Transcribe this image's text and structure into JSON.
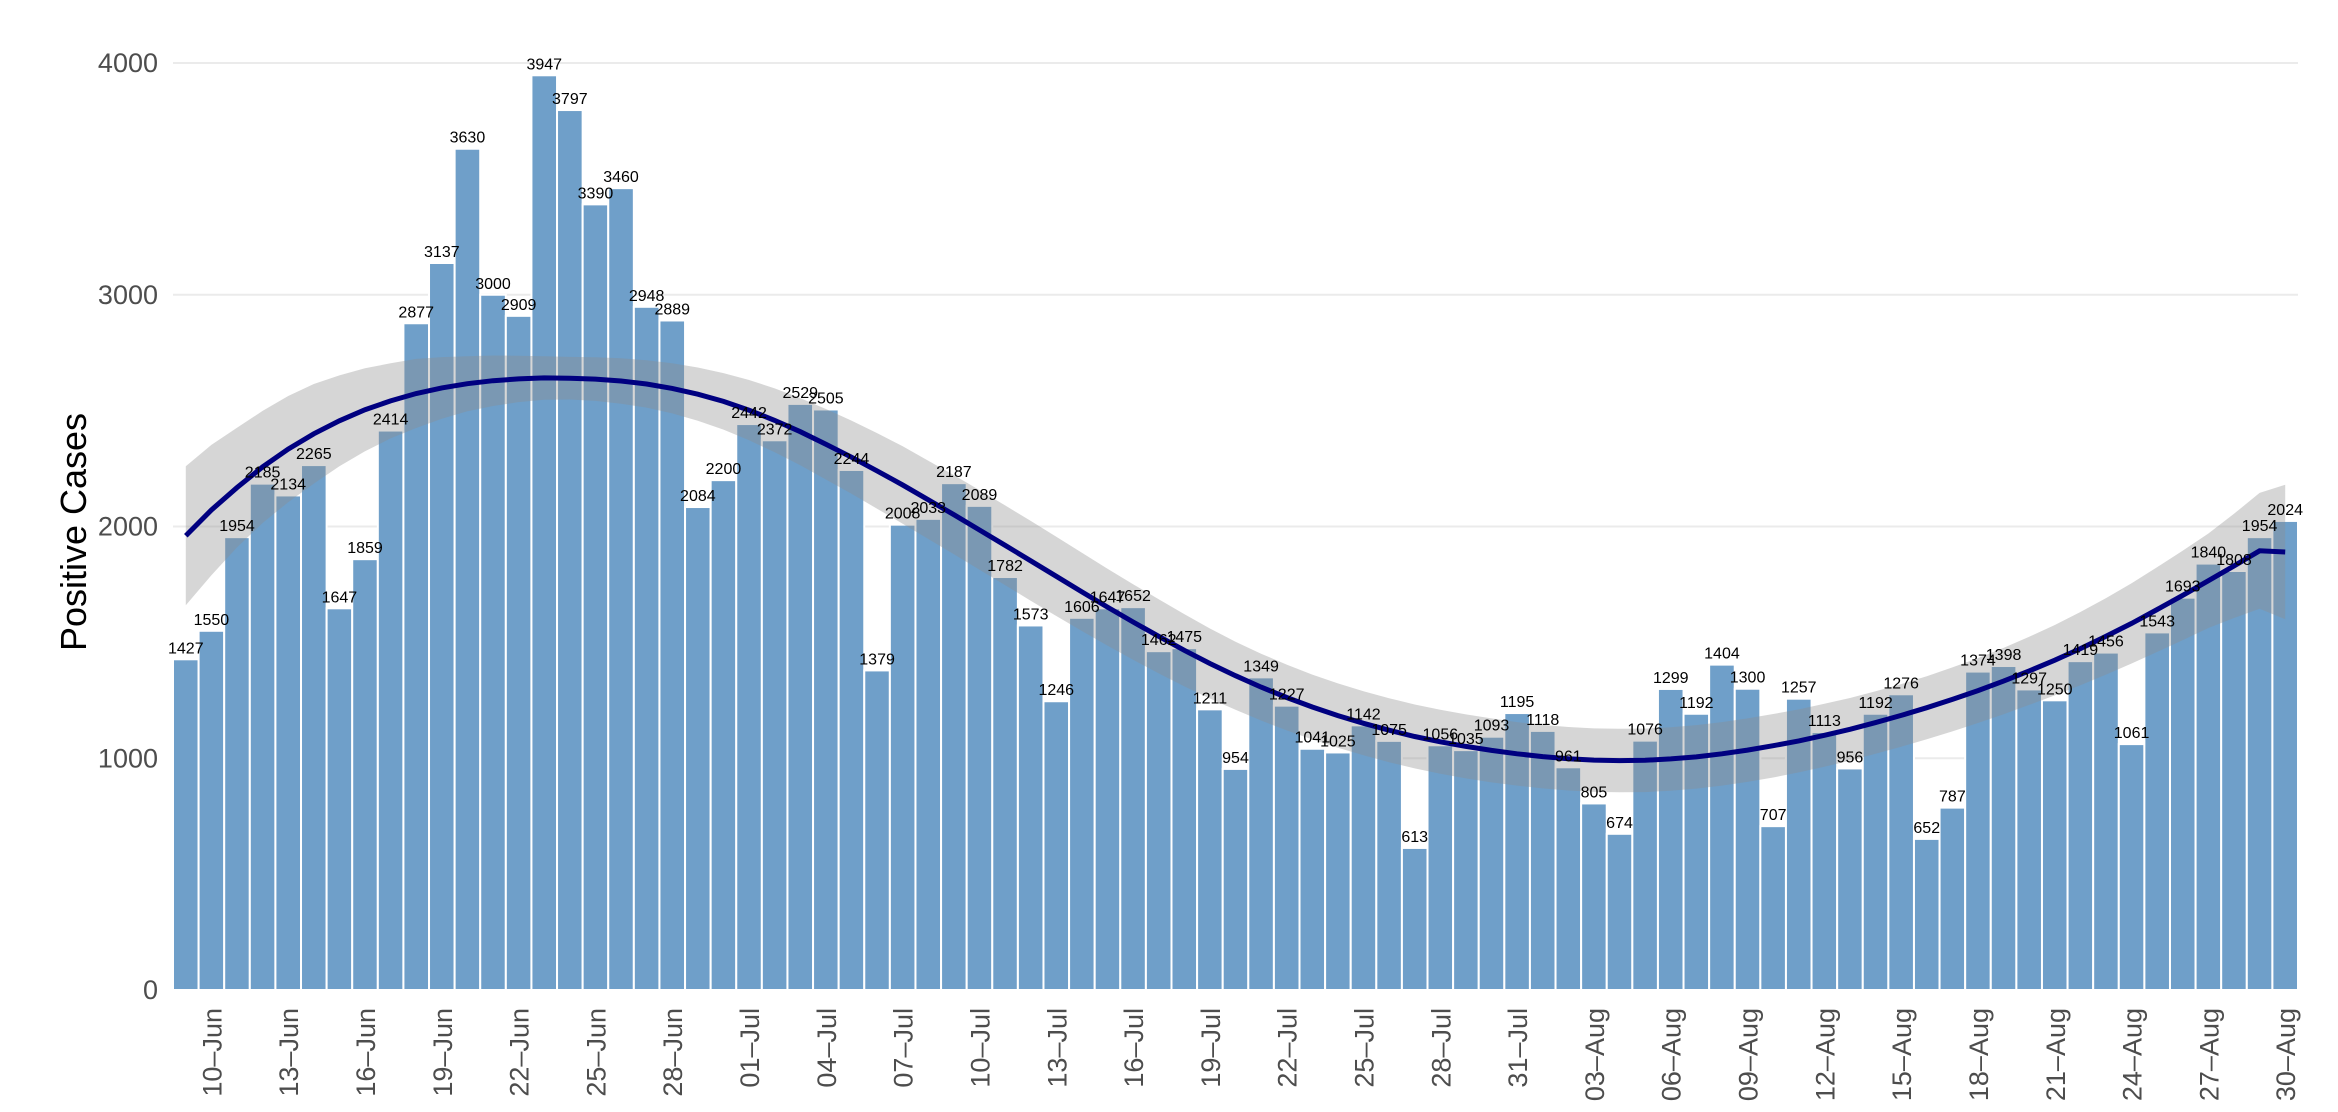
{
  "chart_data": {
    "type": "bar",
    "ylabel": "Positive Cases",
    "xlabel": "",
    "ylim": [
      0,
      4000
    ],
    "yticks": [
      0,
      1000,
      2000,
      3000,
      4000
    ],
    "grid": true,
    "legend": "none",
    "categories": [
      "09-Jun",
      "10-Jun",
      "11-Jun",
      "12-Jun",
      "13-Jun",
      "14-Jun",
      "15-Jun",
      "16-Jun",
      "17-Jun",
      "18-Jun",
      "19-Jun",
      "20-Jun",
      "21-Jun",
      "22-Jun",
      "23-Jun",
      "24-Jun",
      "25-Jun",
      "26-Jun",
      "27-Jun",
      "28-Jun",
      "29-Jun",
      "30-Jun",
      "01-Jul",
      "02-Jul",
      "03-Jul",
      "04-Jul",
      "05-Jul",
      "06-Jul",
      "07-Jul",
      "08-Jul",
      "09-Jul",
      "10-Jul",
      "11-Jul",
      "12-Jul",
      "13-Jul",
      "14-Jul",
      "15-Jul",
      "16-Jul",
      "17-Jul",
      "18-Jul",
      "19-Jul",
      "20-Jul",
      "21-Jul",
      "22-Jul",
      "23-Jul",
      "24-Jul",
      "25-Jul",
      "26-Jul",
      "27-Jul",
      "28-Jul",
      "29-Jul",
      "30-Jul",
      "31-Jul",
      "01-Aug",
      "02-Aug",
      "03-Aug",
      "04-Aug",
      "05-Aug",
      "06-Aug",
      "07-Aug",
      "08-Aug",
      "09-Aug",
      "10-Aug",
      "11-Aug",
      "12-Aug",
      "13-Aug",
      "14-Aug",
      "15-Aug",
      "16-Aug",
      "17-Aug",
      "18-Aug",
      "19-Aug",
      "20-Aug",
      "21-Aug",
      "22-Aug",
      "23-Aug",
      "24-Aug",
      "25-Aug",
      "26-Aug",
      "27-Aug",
      "28-Aug",
      "29-Aug",
      "30-Aug"
    ],
    "xtick_labels": [
      "10–Jun",
      "13–Jun",
      "16–Jun",
      "19–Jun",
      "22–Jun",
      "25–Jun",
      "28–Jun",
      "01–Jul",
      "04–Jul",
      "07–Jul",
      "10–Jul",
      "13–Jul",
      "16–Jul",
      "19–Jul",
      "22–Jul",
      "25–Jul",
      "28–Jul",
      "31–Jul",
      "03–Aug",
      "06–Aug",
      "09–Aug",
      "12–Aug",
      "15–Aug",
      "18–Aug",
      "21–Aug",
      "24–Aug",
      "27–Aug",
      "30–Aug"
    ],
    "series": [
      {
        "values": [
          1427,
          1550,
          1954,
          2185,
          2134,
          2265,
          1647,
          1859,
          2414,
          2877,
          3137,
          3630,
          3000,
          2909,
          3947,
          3797,
          3390,
          3460,
          2948,
          2889,
          2084,
          2200,
          2442,
          2372,
          2529,
          2505,
          2244,
          1379,
          2008,
          2033,
          2187,
          2089,
          1782,
          1573,
          1246,
          1606,
          1647,
          1652,
          1462,
          1475,
          1211,
          954,
          1349,
          1227,
          1041,
          1025,
          1142,
          1075,
          613,
          1056,
          1035,
          1093,
          1195,
          1118,
          961,
          805,
          674,
          1076,
          1299,
          1192,
          1404,
          1300,
          707,
          1257,
          1113,
          956,
          1192,
          1276,
          652,
          787,
          1374,
          1398,
          1297,
          1250,
          1419,
          1456,
          1061,
          1543,
          1693,
          1840,
          1808,
          1954,
          2024
        ]
      }
    ],
    "trend": {
      "values": [
        1960,
        2071,
        2168,
        2257,
        2334,
        2400,
        2456,
        2504,
        2542,
        2574,
        2598,
        2616,
        2629,
        2637,
        2641,
        2640,
        2636,
        2628,
        2615,
        2596,
        2571,
        2540,
        2502,
        2458,
        2409,
        2355,
        2299,
        2240,
        2179,
        2115,
        2051,
        1985,
        1919,
        1852,
        1785,
        1718,
        1652,
        1588,
        1526,
        1466,
        1409,
        1356,
        1307,
        1262,
        1221,
        1184,
        1151,
        1121,
        1094,
        1071,
        1051,
        1034,
        1019,
        1007,
        998,
        992,
        990,
        991,
        997,
        1006,
        1019,
        1035,
        1054,
        1075,
        1099,
        1125,
        1154,
        1185,
        1218,
        1254,
        1292,
        1333,
        1377,
        1423,
        1473,
        1526,
        1582,
        1642,
        1703,
        1766,
        1830,
        1895,
        1890
      ],
      "ci_low": [
        1660,
        1790,
        1910,
        2015,
        2105,
        2185,
        2260,
        2325,
        2380,
        2425,
        2465,
        2497,
        2520,
        2537,
        2547,
        2548,
        2542,
        2530,
        2513,
        2488,
        2456,
        2418,
        2372,
        2320,
        2264,
        2203,
        2141,
        2077,
        2012,
        1946,
        1880,
        1813,
        1747,
        1680,
        1614,
        1549,
        1486,
        1425,
        1366,
        1310,
        1258,
        1209,
        1163,
        1120,
        1081,
        1045,
        1013,
        983,
        956,
        933,
        913,
        896,
        882,
        870,
        861,
        855,
        853,
        854,
        860,
        869,
        882,
        898,
        917,
        939,
        963,
        990,
        1019,
        1050,
        1082,
        1116,
        1152,
        1190,
        1230,
        1271,
        1315,
        1361,
        1409,
        1459,
        1510,
        1562,
        1605,
        1645,
        1600
      ],
      "ci_high": [
        2260,
        2352,
        2426,
        2499,
        2563,
        2615,
        2652,
        2683,
        2704,
        2723,
        2731,
        2735,
        2738,
        2737,
        2735,
        2732,
        2730,
        2726,
        2717,
        2704,
        2686,
        2662,
        2632,
        2596,
        2554,
        2507,
        2457,
        2403,
        2346,
        2284,
        2222,
        2157,
        2091,
        2024,
        1956,
        1887,
        1818,
        1751,
        1686,
        1622,
        1560,
        1503,
        1451,
        1404,
        1361,
        1323,
        1289,
        1259,
        1232,
        1209,
        1189,
        1172,
        1156,
        1144,
        1135,
        1129,
        1127,
        1128,
        1134,
        1143,
        1156,
        1172,
        1191,
        1211,
        1235,
        1260,
        1289,
        1320,
        1354,
        1392,
        1432,
        1476,
        1524,
        1575,
        1631,
        1691,
        1755,
        1825,
        1896,
        1970,
        2055,
        2145,
        2180
      ]
    }
  }
}
